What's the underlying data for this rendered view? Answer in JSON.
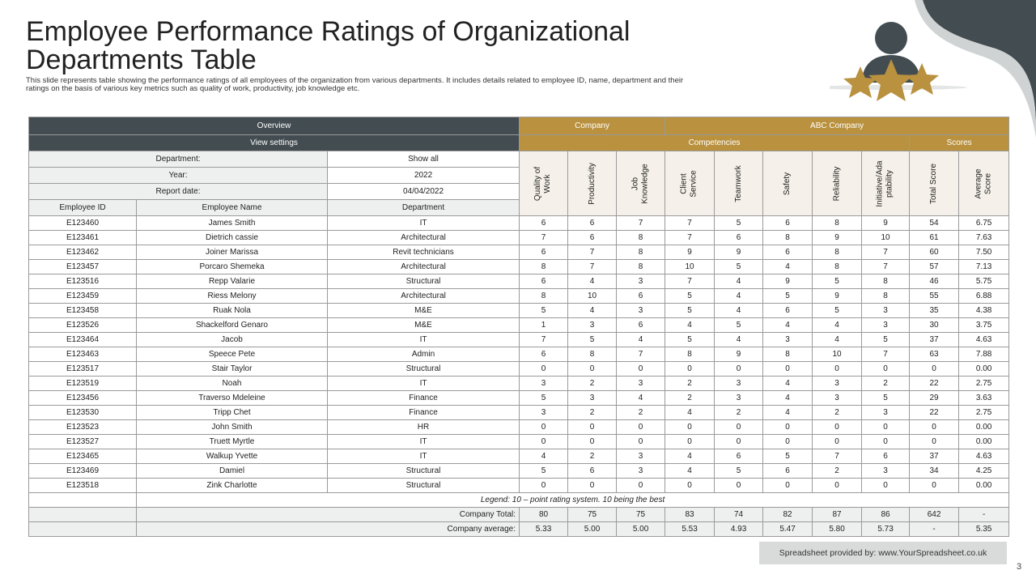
{
  "slide": {
    "title": "Employee Performance Ratings of Organizational Departments Table",
    "subtitle": "This slide represents table showing the performance ratings of all employees of the organization from various departments. It includes details related to employee ID,  name, department and their ratings on the basis of various key metrics such as quality of work, productivity, job knowledge etc.",
    "footer": "Spreadsheet provided by: www.YourSpreadsheet.co.uk",
    "page_number": "3"
  },
  "colors": {
    "dark": "#424c51",
    "gold": "#b9913f",
    "light": "#eef0ef"
  },
  "header": {
    "overview": "Overview",
    "company_label": "Company",
    "company_name": "ABC Company",
    "view_settings": "View settings",
    "competencies": "Competencies",
    "scores": "Scores",
    "department_label": "Department:",
    "department_value": "Show all",
    "year_label": "Year:",
    "year_value": "2022",
    "report_date_label": "Report date:",
    "report_date_value": "04/04/2022",
    "col_id": "Employee ID",
    "col_name": "Employee Name",
    "col_dept": "Department"
  },
  "metrics": [
    "Quality of Work",
    "Productivity",
    "Job Knowledge",
    "Client Service",
    "Teamwork",
    "Safety",
    "Reliability",
    "Initiative/Adaptability",
    "Total Score",
    "Average Score"
  ],
  "metric_lines": [
    [
      "Quality of",
      "Work"
    ],
    [
      "Productivity"
    ],
    [
      "Job",
      "Knowledge"
    ],
    [
      "Client",
      "Service"
    ],
    [
      "Teamwork"
    ],
    [
      "Safety"
    ],
    [
      "Reliability"
    ],
    [
      "Initiative/Ada",
      "ptability"
    ],
    [
      "Total Score"
    ],
    [
      "Average",
      "Score"
    ]
  ],
  "rows": [
    [
      "E123460",
      "James Smith",
      "IT",
      "6",
      "6",
      "7",
      "7",
      "5",
      "6",
      "8",
      "9",
      "54",
      "6.75"
    ],
    [
      "E123461",
      "Dietrich cassie",
      "Architectural",
      "7",
      "6",
      "8",
      "7",
      "6",
      "8",
      "9",
      "10",
      "61",
      "7.63"
    ],
    [
      "E123462",
      "Joiner Marissa",
      "Revit technicians",
      "6",
      "7",
      "8",
      "9",
      "9",
      "6",
      "8",
      "7",
      "60",
      "7.50"
    ],
    [
      "E123457",
      "Porcaro Shemeka",
      "Architectural",
      "8",
      "7",
      "8",
      "10",
      "5",
      "4",
      "8",
      "7",
      "57",
      "7.13"
    ],
    [
      "E123516",
      "Repp Valarie",
      "Structural",
      "6",
      "4",
      "3",
      "7",
      "4",
      "9",
      "5",
      "8",
      "46",
      "5.75"
    ],
    [
      "E123459",
      "Riess Melony",
      "Architectural",
      "8",
      "10",
      "6",
      "5",
      "4",
      "5",
      "9",
      "8",
      "55",
      "6.88"
    ],
    [
      "E123458",
      "Ruak Nola",
      "M&E",
      "5",
      "4",
      "3",
      "5",
      "4",
      "6",
      "5",
      "3",
      "35",
      "4.38"
    ],
    [
      "E123526",
      "Shackelford Genaro",
      "M&E",
      "1",
      "3",
      "6",
      "4",
      "5",
      "4",
      "4",
      "3",
      "30",
      "3.75"
    ],
    [
      "E123464",
      "Jacob",
      "IT",
      "7",
      "5",
      "4",
      "5",
      "4",
      "3",
      "4",
      "5",
      "37",
      "4.63"
    ],
    [
      "E123463",
      "Speece Pete",
      "Admin",
      "6",
      "8",
      "7",
      "8",
      "9",
      "8",
      "10",
      "7",
      "63",
      "7.88"
    ],
    [
      "E123517",
      "Stair Taylor",
      "Structural",
      "0",
      "0",
      "0",
      "0",
      "0",
      "0",
      "0",
      "0",
      "0",
      "0.00"
    ],
    [
      "E123519",
      "Noah",
      "IT",
      "3",
      "2",
      "3",
      "2",
      "3",
      "4",
      "3",
      "2",
      "22",
      "2.75"
    ],
    [
      "E123456",
      "Traverso Mdeleine",
      "Finance",
      "5",
      "3",
      "4",
      "2",
      "3",
      "4",
      "3",
      "5",
      "29",
      "3.63"
    ],
    [
      "E123530",
      "Tripp Chet",
      "Finance",
      "3",
      "2",
      "2",
      "4",
      "2",
      "4",
      "2",
      "3",
      "22",
      "2.75"
    ],
    [
      "E123523",
      "John Smith",
      "HR",
      "0",
      "0",
      "0",
      "0",
      "0",
      "0",
      "0",
      "0",
      "0",
      "0.00"
    ],
    [
      "E123527",
      "Truett Myrtle",
      "IT",
      "0",
      "0",
      "0",
      "0",
      "0",
      "0",
      "0",
      "0",
      "0",
      "0.00"
    ],
    [
      "E123465",
      "Walkup Yvette",
      "IT",
      "4",
      "2",
      "3",
      "4",
      "6",
      "5",
      "7",
      "6",
      "37",
      "4.63"
    ],
    [
      "E123469",
      "Damiel",
      "Structural",
      "5",
      "6",
      "3",
      "4",
      "5",
      "6",
      "2",
      "3",
      "34",
      "4.25"
    ],
    [
      "E123518",
      "Zink Charlotte",
      "Structural",
      "0",
      "0",
      "0",
      "0",
      "0",
      "0",
      "0",
      "0",
      "0",
      "0.00"
    ]
  ],
  "legend": "Legend: 10 – point rating system. 10 being the best",
  "totals": {
    "total_label": "Company Total:",
    "total_values": [
      "80",
      "75",
      "75",
      "83",
      "74",
      "82",
      "87",
      "86",
      "642",
      "-"
    ],
    "avg_label": "Company average:",
    "avg_values": [
      "5.33",
      "5.00",
      "5.00",
      "5.53",
      "4.93",
      "5.47",
      "5.80",
      "5.73",
      "-",
      "5.35"
    ]
  }
}
